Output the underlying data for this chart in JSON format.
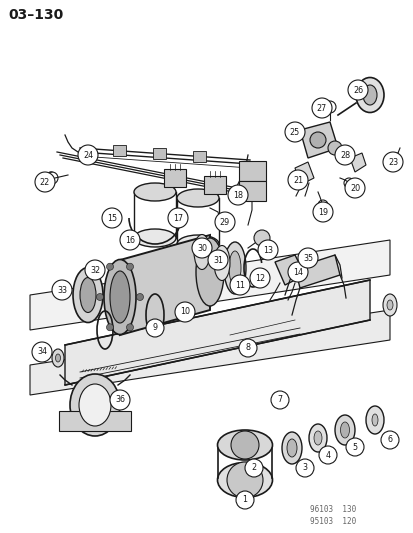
{
  "title": "03–130",
  "background_color": "#ffffff",
  "line_color": "#1a1a1a",
  "watermark1": "96103  130",
  "watermark2": "95103  120",
  "figsize": [
    4.14,
    5.33
  ],
  "dpi": 100
}
